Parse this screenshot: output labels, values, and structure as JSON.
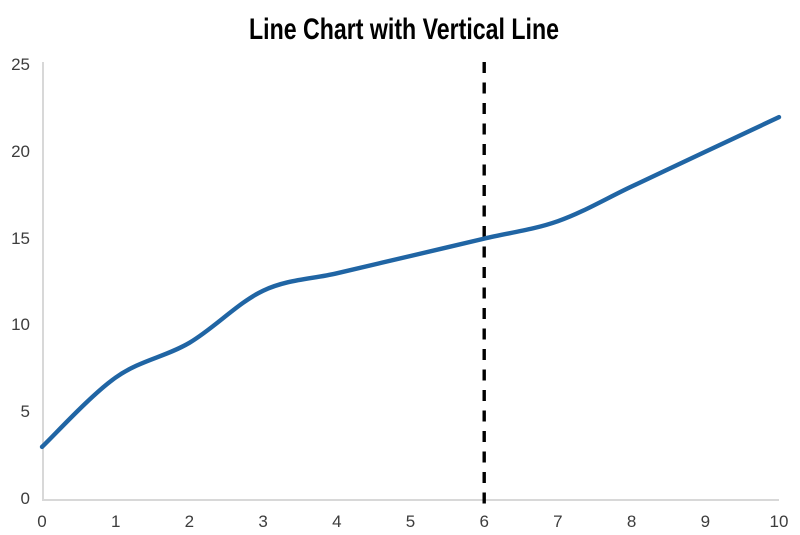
{
  "page": {
    "background_color": "#ffffff"
  },
  "chart_data": {
    "type": "line",
    "title": "Line Chart with Vertical Line",
    "x": [
      0,
      1,
      2,
      3,
      4,
      5,
      6,
      7,
      8,
      9,
      10
    ],
    "values": [
      3,
      7,
      9,
      12,
      13,
      14,
      15,
      16,
      18,
      20,
      22
    ],
    "x_tick_labels": [
      "0",
      "1",
      "2",
      "3",
      "4",
      "5",
      "6",
      "7",
      "8",
      "9",
      "10"
    ],
    "y_tick_labels": [
      "0",
      "5",
      "10",
      "15",
      "20",
      "25"
    ],
    "y_ticks": [
      0,
      5,
      10,
      15,
      20,
      25
    ],
    "xlim": [
      0,
      10
    ],
    "ylim": [
      0,
      25
    ],
    "grid": false,
    "legend": "none",
    "smooth": true,
    "line_color": "#2065a4",
    "line_width": 4.4,
    "vline": {
      "x": 6,
      "color": "#000000",
      "style": "dashed"
    },
    "axis_color": "#d8d8d8",
    "tick_label_color": "#3d3d3d",
    "title_color": "#000000"
  }
}
